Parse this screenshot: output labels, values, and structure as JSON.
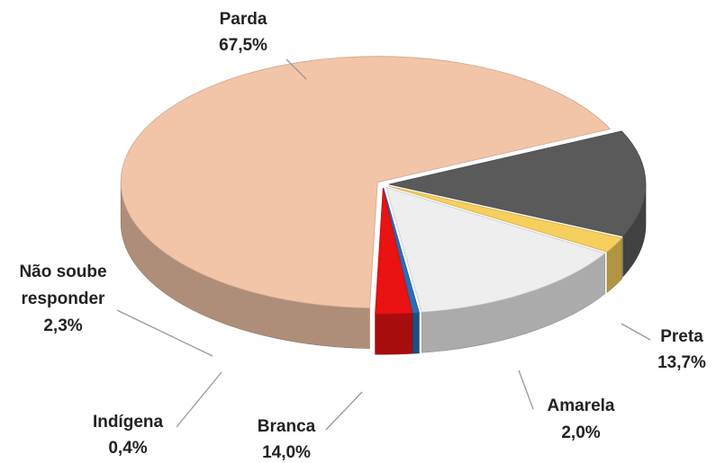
{
  "chart_data": {
    "type": "pie",
    "categories": [
      "Preta",
      "Amarela",
      "Branca",
      "Indígena",
      "Não soube responder",
      "Parda"
    ],
    "values": [
      13.7,
      2.0,
      14.0,
      0.4,
      2.3,
      67.5
    ],
    "value_labels": [
      "13,7%",
      "2,0%",
      "14,0%",
      "0,4%",
      "2,3%",
      "67,5%"
    ],
    "colors": [
      "#5a5a5a",
      "#f7cf5c",
      "#eeeeee",
      "#2a6cb8",
      "#ea1212",
      "#f2c5a8"
    ]
  }
}
